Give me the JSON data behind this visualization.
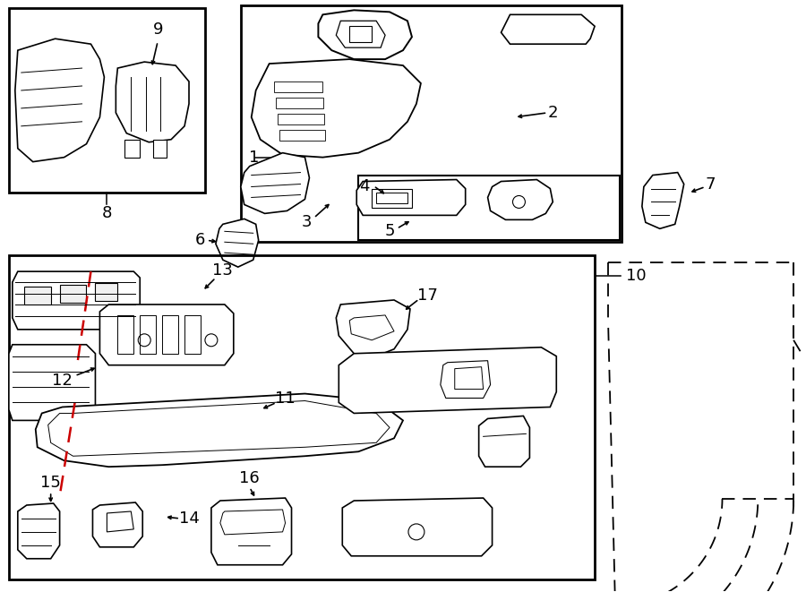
{
  "bg_color": "#ffffff",
  "line_color": "#000000",
  "red_color": "#cc0000",
  "fig_width": 9.0,
  "fig_height": 6.61,
  "dpi": 100
}
